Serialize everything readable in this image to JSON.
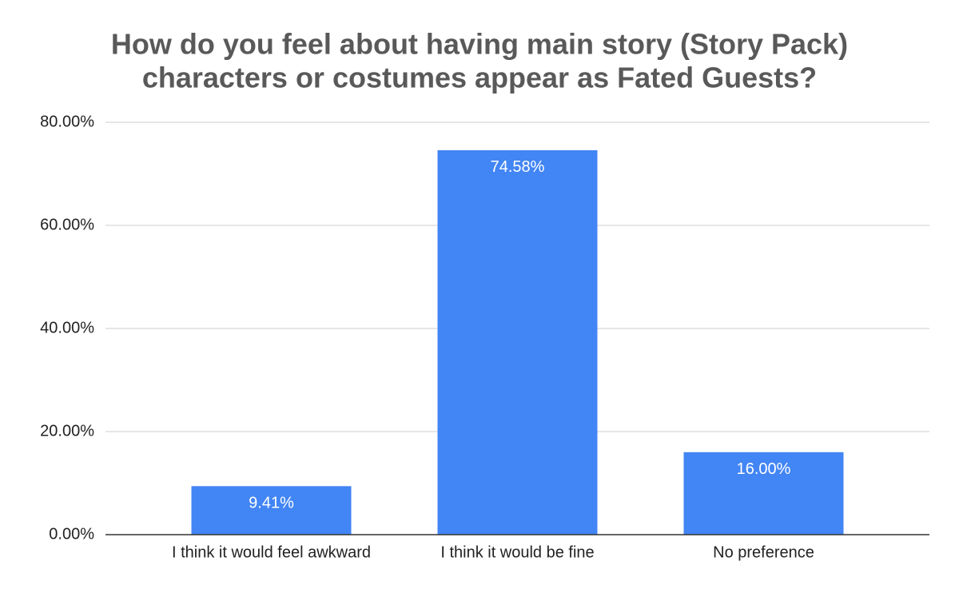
{
  "chart_data": {
    "type": "bar",
    "title": [
      "How do you feel about having main story (Story Pack)",
      "characters or costumes appear as Fated Guests?"
    ],
    "categories": [
      "I think it would feel awkward",
      "I think it would be fine",
      "No preference"
    ],
    "values": [
      9.41,
      74.58,
      16.0
    ],
    "value_labels": [
      "9.41%",
      "74.58%",
      "16.00%"
    ],
    "color": "#4285f4",
    "ylim": [
      0,
      80
    ],
    "yticks": [
      {
        "value": 0,
        "label": "0.00%"
      },
      {
        "value": 20,
        "label": "20.00%"
      },
      {
        "value": 40,
        "label": "40.00%"
      },
      {
        "value": 60,
        "label": "60.00%"
      },
      {
        "value": 80,
        "label": "80.00%"
      }
    ],
    "grid": true
  }
}
